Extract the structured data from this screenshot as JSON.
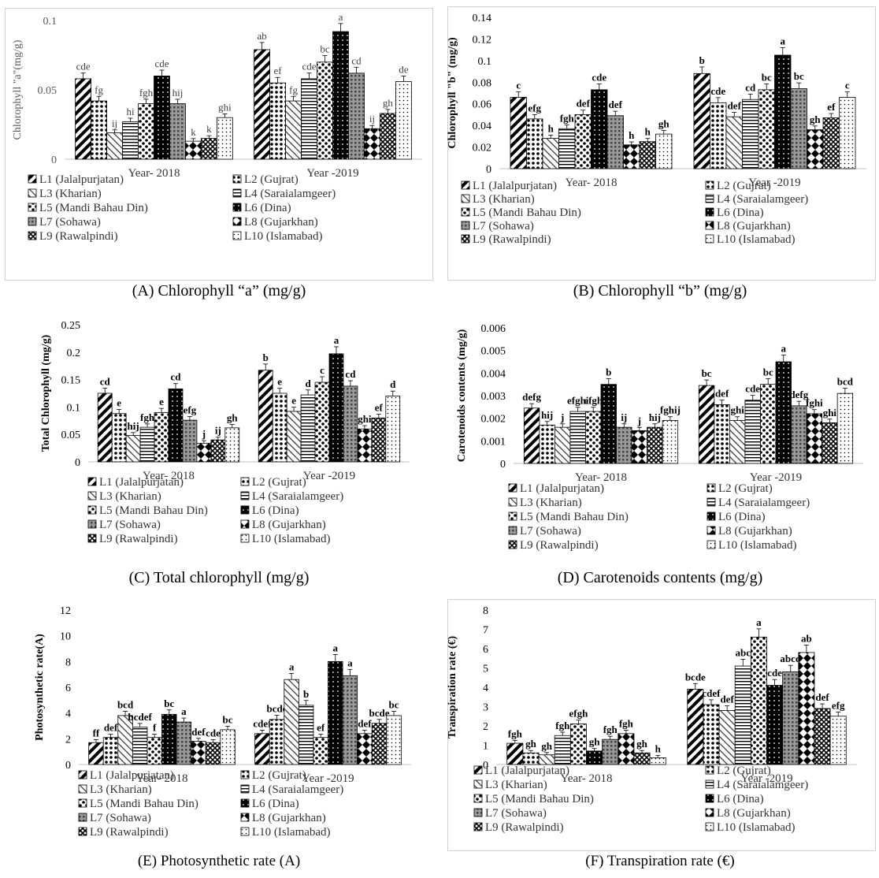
{
  "categories": [
    "Year- 2018",
    "Year -2019"
  ],
  "legend_labels": [
    "L1 (Jalalpurjatan)",
    "L2 (Gujrat)",
    "L3 (Kharian)",
    "L4 (Saraialamgeer)",
    "L5 (Mandi Bahau Din)",
    "L6 (Dina)",
    "L7 (Sohawa)",
    "L8 (Gujarkhan)",
    "L9 (Rawalpindi)",
    "L10 (Islamabad)"
  ],
  "captions": {
    "A": "(A) Chlorophyll “a” (mg/g)",
    "B": "(B) Chlorophyll “b” (mg/g)",
    "C": "(C) Total chlorophyll (mg/g)",
    "D": "(D) Carotenoids contents (mg/g)",
    "E": "(E) Photosynthetic rate (A)",
    "F": "(F) Transpiration rate (€)"
  },
  "chart_data": [
    {
      "id": "A",
      "type": "bar",
      "ylabel": "Chlorophyll \"a\"(mg/g)",
      "yticks": [
        "0",
        "0.05",
        "0.1"
      ],
      "ylim": [
        0,
        0.1
      ],
      "categories": [
        "Year- 2018",
        "Year -2019"
      ],
      "series": [
        {
          "name": "L1 (Jalalpurjatan)",
          "values": [
            0.058,
            0.079
          ],
          "labels": [
            "cde",
            "ab"
          ]
        },
        {
          "name": "L2 (Gujrat)",
          "values": [
            0.042,
            0.055
          ],
          "labels": [
            "fg",
            "ef"
          ]
        },
        {
          "name": "L3 (Kharian)",
          "values": [
            0.019,
            0.042
          ],
          "labels": [
            "ij",
            "fg"
          ]
        },
        {
          "name": "L4 (Saraialamgeer)",
          "values": [
            0.027,
            0.058
          ],
          "labels": [
            "hi",
            "cde"
          ]
        },
        {
          "name": "L5 (Mandi Bahau Din)",
          "values": [
            0.04,
            0.07
          ],
          "labels": [
            "fgh",
            "bc"
          ]
        },
        {
          "name": "L6 (Dina)",
          "values": [
            0.06,
            0.092
          ],
          "labels": [
            "cde",
            "a"
          ]
        },
        {
          "name": "L7 (Sohawa)",
          "values": [
            0.04,
            0.062
          ],
          "labels": [
            "hij",
            "cd"
          ]
        },
        {
          "name": "L8 (Gujarkhan)",
          "values": [
            0.013,
            0.022
          ],
          "labels": [
            "k",
            "ij"
          ]
        },
        {
          "name": "L9 (Rawalpindi)",
          "values": [
            0.015,
            0.033
          ],
          "labels": [
            "k",
            "gh"
          ]
        },
        {
          "name": "L10 (Islamabad)",
          "values": [
            0.03,
            0.056
          ],
          "labels": [
            "ghi",
            "de"
          ]
        }
      ]
    },
    {
      "id": "B",
      "type": "bar",
      "ylabel": "Chlorophyll \"b\" (mg/g)",
      "yticks": [
        "0",
        "0.02",
        "0.04",
        "0.06",
        "0.08",
        "0.1",
        "0.12",
        "0.14"
      ],
      "ylim": [
        0,
        0.14
      ],
      "categories": [
        "Year- 2018",
        "Year -2019"
      ],
      "series": [
        {
          "name": "L1 (Jalalpurjatan)",
          "values": [
            0.066,
            0.088
          ],
          "labels": [
            "c",
            "b"
          ]
        },
        {
          "name": "L2 (Gujrat)",
          "values": [
            0.046,
            0.061
          ],
          "labels": [
            "efg",
            "cde"
          ]
        },
        {
          "name": "L3 (Kharian)",
          "values": [
            0.028,
            0.048
          ],
          "labels": [
            "h",
            "def"
          ]
        },
        {
          "name": "L4 (Saraialamgeer)",
          "values": [
            0.037,
            0.064
          ],
          "labels": [
            "fgh",
            "cd"
          ]
        },
        {
          "name": "L5 (Mandi Bahau Din)",
          "values": [
            0.05,
            0.073
          ],
          "labels": [
            "def",
            "bc"
          ]
        },
        {
          "name": "L6 (Dina)",
          "values": [
            0.073,
            0.105
          ],
          "labels": [
            "cde",
            "a"
          ]
        },
        {
          "name": "L7 (Sohawa)",
          "values": [
            0.049,
            0.074
          ],
          "labels": [
            "def",
            "bc"
          ]
        },
        {
          "name": "L8 (Gujarkhan)",
          "values": [
            0.022,
            0.036
          ],
          "labels": [
            "h",
            "gh"
          ]
        },
        {
          "name": "L9 (Rawalpindi)",
          "values": [
            0.025,
            0.047
          ],
          "labels": [
            "h",
            "ef"
          ]
        },
        {
          "name": "L10 (Islamabad)",
          "values": [
            0.032,
            0.066
          ],
          "labels": [
            "gh",
            "c"
          ]
        }
      ]
    },
    {
      "id": "C",
      "type": "bar",
      "ylabel": "Total Chlorophyll (mg/g)",
      "yticks": [
        "0",
        "0.05",
        "0.1",
        "0.15",
        "0.2",
        "0.25"
      ],
      "ylim": [
        0,
        0.25
      ],
      "categories": [
        "Year- 2018",
        "Year -2019"
      ],
      "series": [
        {
          "name": "L1 (Jalalpurjatan)",
          "values": [
            0.125,
            0.167
          ],
          "labels": [
            "cd",
            "b"
          ]
        },
        {
          "name": "L2 (Gujrat)",
          "values": [
            0.088,
            0.125
          ],
          "labels": [
            "e",
            "e"
          ]
        },
        {
          "name": "L3 (Kharian)",
          "values": [
            0.048,
            0.092
          ],
          "labels": [
            "hij",
            "e"
          ]
        },
        {
          "name": "L4 (Saraialamgeer)",
          "values": [
            0.063,
            0.122
          ],
          "labels": [
            "fgh",
            "d"
          ]
        },
        {
          "name": "L5 (Mandi Bahau Din)",
          "values": [
            0.09,
            0.145
          ],
          "labels": [
            "e",
            "c"
          ]
        },
        {
          "name": "L6 (Dina)",
          "values": [
            0.133,
            0.197
          ],
          "labels": [
            "cd",
            "a"
          ]
        },
        {
          "name": "L7 (Sohawa)",
          "values": [
            0.076,
            0.138
          ],
          "labels": [
            "efg",
            "cd"
          ]
        },
        {
          "name": "L8 (Gujarkhan)",
          "values": [
            0.034,
            0.06
          ],
          "labels": [
            "j",
            "ghi"
          ]
        },
        {
          "name": "L9 (Rawalpindi)",
          "values": [
            0.04,
            0.08
          ],
          "labels": [
            "ij",
            "ef"
          ]
        },
        {
          "name": "L10 (Islamabad)",
          "values": [
            0.062,
            0.12
          ],
          "labels": [
            "gh",
            "d"
          ]
        }
      ]
    },
    {
      "id": "D",
      "type": "bar",
      "ylabel": "Carotenoids contents (mg/g)",
      "yticks": [
        "0",
        "0.001",
        "0.002",
        "0.003",
        "0.004",
        "0.005",
        "0.006"
      ],
      "ylim": [
        0,
        0.006
      ],
      "categories": [
        "Year- 2018",
        "Year -2019"
      ],
      "series": [
        {
          "name": "L1 (Jalalpurjatan)",
          "values": [
            0.00245,
            0.00345
          ],
          "labels": [
            "defg",
            "bc"
          ]
        },
        {
          "name": "L2 (Gujrat)",
          "values": [
            0.0017,
            0.0026
          ],
          "labels": [
            "hij",
            "def"
          ]
        },
        {
          "name": "L3 (Kharian)",
          "values": [
            0.0016,
            0.0019
          ],
          "labels": [
            "j",
            "ghi"
          ]
        },
        {
          "name": "L4 (Saraialamgeer)",
          "values": [
            0.0023,
            0.0028
          ],
          "labels": [
            "efghi",
            "cde"
          ]
        },
        {
          "name": "L5 (Mandi Bahau Din)",
          "values": [
            0.0023,
            0.0035
          ],
          "labels": [
            "efgh",
            "bc"
          ]
        },
        {
          "name": "L6 (Dina)",
          "values": [
            0.0035,
            0.0045
          ],
          "labels": [
            "b",
            "a"
          ]
        },
        {
          "name": "L7 (Sohawa)",
          "values": [
            0.0016,
            0.00255
          ],
          "labels": [
            "ij",
            "defg"
          ]
        },
        {
          "name": "L8 (Gujarkhan)",
          "values": [
            0.00145,
            0.0022
          ],
          "labels": [
            "j",
            "fghi"
          ]
        },
        {
          "name": "L9 (Rawalpindi)",
          "values": [
            0.0016,
            0.0018
          ],
          "labels": [
            "hij",
            "ghi"
          ]
        },
        {
          "name": "L10 (Islamabad)",
          "values": [
            0.0019,
            0.0031
          ],
          "labels": [
            "fghij",
            "bcd"
          ]
        }
      ]
    },
    {
      "id": "E",
      "type": "bar",
      "ylabel": "Photosynthetic rate(A)",
      "yticks": [
        "0",
        "2",
        "4",
        "6",
        "8",
        "10",
        "12"
      ],
      "ylim": [
        0,
        12
      ],
      "categories": [
        "Year- 2018",
        "Year -2019"
      ],
      "series": [
        {
          "name": "L1 (Jalalpurjatan)",
          "values": [
            1.7,
            2.4
          ],
          "labels": [
            "ff",
            "cdef"
          ]
        },
        {
          "name": "L2 (Gujrat)",
          "values": [
            2.1,
            3.5
          ],
          "labels": [
            "def",
            "bcde"
          ]
        },
        {
          "name": "L3 (Kharian)",
          "values": [
            3.8,
            6.6
          ],
          "labels": [
            "bcd",
            "a"
          ]
        },
        {
          "name": "L4 (Saraialamgeer)",
          "values": [
            2.9,
            4.6
          ],
          "labels": [
            "bcdef",
            "b"
          ]
        },
        {
          "name": "L5 (Mandi Bahau Din)",
          "values": [
            2.1,
            2.1
          ],
          "labels": [
            "f",
            "ef"
          ]
        },
        {
          "name": "L6 (Dina)",
          "values": [
            3.9,
            8.0
          ],
          "labels": [
            "bc",
            "a"
          ]
        },
        {
          "name": "L7 (Sohawa)",
          "values": [
            3.3,
            6.9
          ],
          "labels": [
            "a",
            "a"
          ]
        },
        {
          "name": "L8 (Gujarkhan)",
          "values": [
            1.8,
            2.4
          ],
          "labels": [
            "def",
            "def"
          ]
        },
        {
          "name": "L9 (Rawalpindi)",
          "values": [
            1.7,
            3.2
          ],
          "labels": [
            "cde",
            "bcde"
          ]
        },
        {
          "name": "L10 (Islamabad)",
          "values": [
            2.7,
            3.8
          ],
          "labels": [
            "bc",
            "bc"
          ]
        }
      ]
    },
    {
      "id": "F",
      "type": "bar",
      "ylabel": "Transpiration rate (€)",
      "yticks": [
        "0",
        "1",
        "2",
        "3",
        "4",
        "5",
        "6",
        "7",
        "8"
      ],
      "ylim": [
        0,
        8
      ],
      "categories": [
        "Year- 2018",
        "Year -2019"
      ],
      "series": [
        {
          "name": "L1 (Jalalpurjatan)",
          "values": [
            1.1,
            3.9
          ],
          "labels": [
            "fgh",
            "bcde"
          ]
        },
        {
          "name": "L2 (Gujrat)",
          "values": [
            0.6,
            3.1
          ],
          "labels": [
            "gh",
            "cdef"
          ]
        },
        {
          "name": "L3 (Kharian)",
          "values": [
            0.5,
            2.8
          ],
          "labels": [
            "gh",
            "def"
          ]
        },
        {
          "name": "L4 (Saraialamgeer)",
          "values": [
            1.5,
            5.1
          ],
          "labels": [
            "fgh",
            "abc"
          ]
        },
        {
          "name": "L5 (Mandi Bahau Din)",
          "values": [
            2.1,
            6.6
          ],
          "labels": [
            "efgh",
            "a"
          ]
        },
        {
          "name": "L6 (Dina)",
          "values": [
            0.7,
            4.1
          ],
          "labels": [
            "gh",
            "cde"
          ]
        },
        {
          "name": "L7 (Sohawa)",
          "values": [
            1.3,
            4.8
          ],
          "labels": [
            "fgh",
            "abcd"
          ]
        },
        {
          "name": "L8 (Gujarkhan)",
          "values": [
            1.6,
            5.8
          ],
          "labels": [
            "fgh",
            "ab"
          ]
        },
        {
          "name": "L9 (Rawalpindi)",
          "values": [
            0.6,
            2.9
          ],
          "labels": [
            "gh",
            "def"
          ]
        },
        {
          "name": "L10 (Islamabad)",
          "values": [
            0.35,
            2.5
          ],
          "labels": [
            "h",
            "efg"
          ]
        }
      ]
    }
  ]
}
